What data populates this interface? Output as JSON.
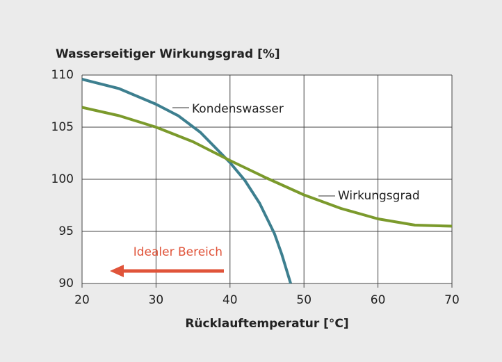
{
  "chart_data": {
    "type": "line",
    "title": "Wasserseitiger Wirkungsgrad [%]",
    "x_label": "Rücklauftemperatur [°C]",
    "annotation": "Idealer Bereich",
    "series": [
      {
        "name": "Kondenswasser",
        "color": "#3d7f8f",
        "x": [
          20,
          25,
          30,
          33,
          36,
          40,
          42,
          44,
          46,
          47,
          48.2
        ],
        "values": [
          109.6,
          108.7,
          107.2,
          106.1,
          104.5,
          101.6,
          99.9,
          97.7,
          94.8,
          92.8,
          90
        ]
      },
      {
        "name": "Wirkungsgrad",
        "color": "#7b9a2c",
        "x": [
          20,
          25,
          30,
          35,
          40,
          45,
          50,
          55,
          60,
          65,
          70
        ],
        "values": [
          106.9,
          106.1,
          105,
          103.6,
          101.8,
          100.1,
          98.5,
          97.2,
          96.2,
          95.6,
          95.5
        ]
      }
    ],
    "xlim": [
      20,
      70
    ],
    "xticks": [
      20,
      30,
      40,
      50,
      60,
      70
    ],
    "ylim": [
      90,
      110
    ],
    "yticks": [
      90,
      95,
      100,
      105,
      110
    ],
    "grid": true
  }
}
